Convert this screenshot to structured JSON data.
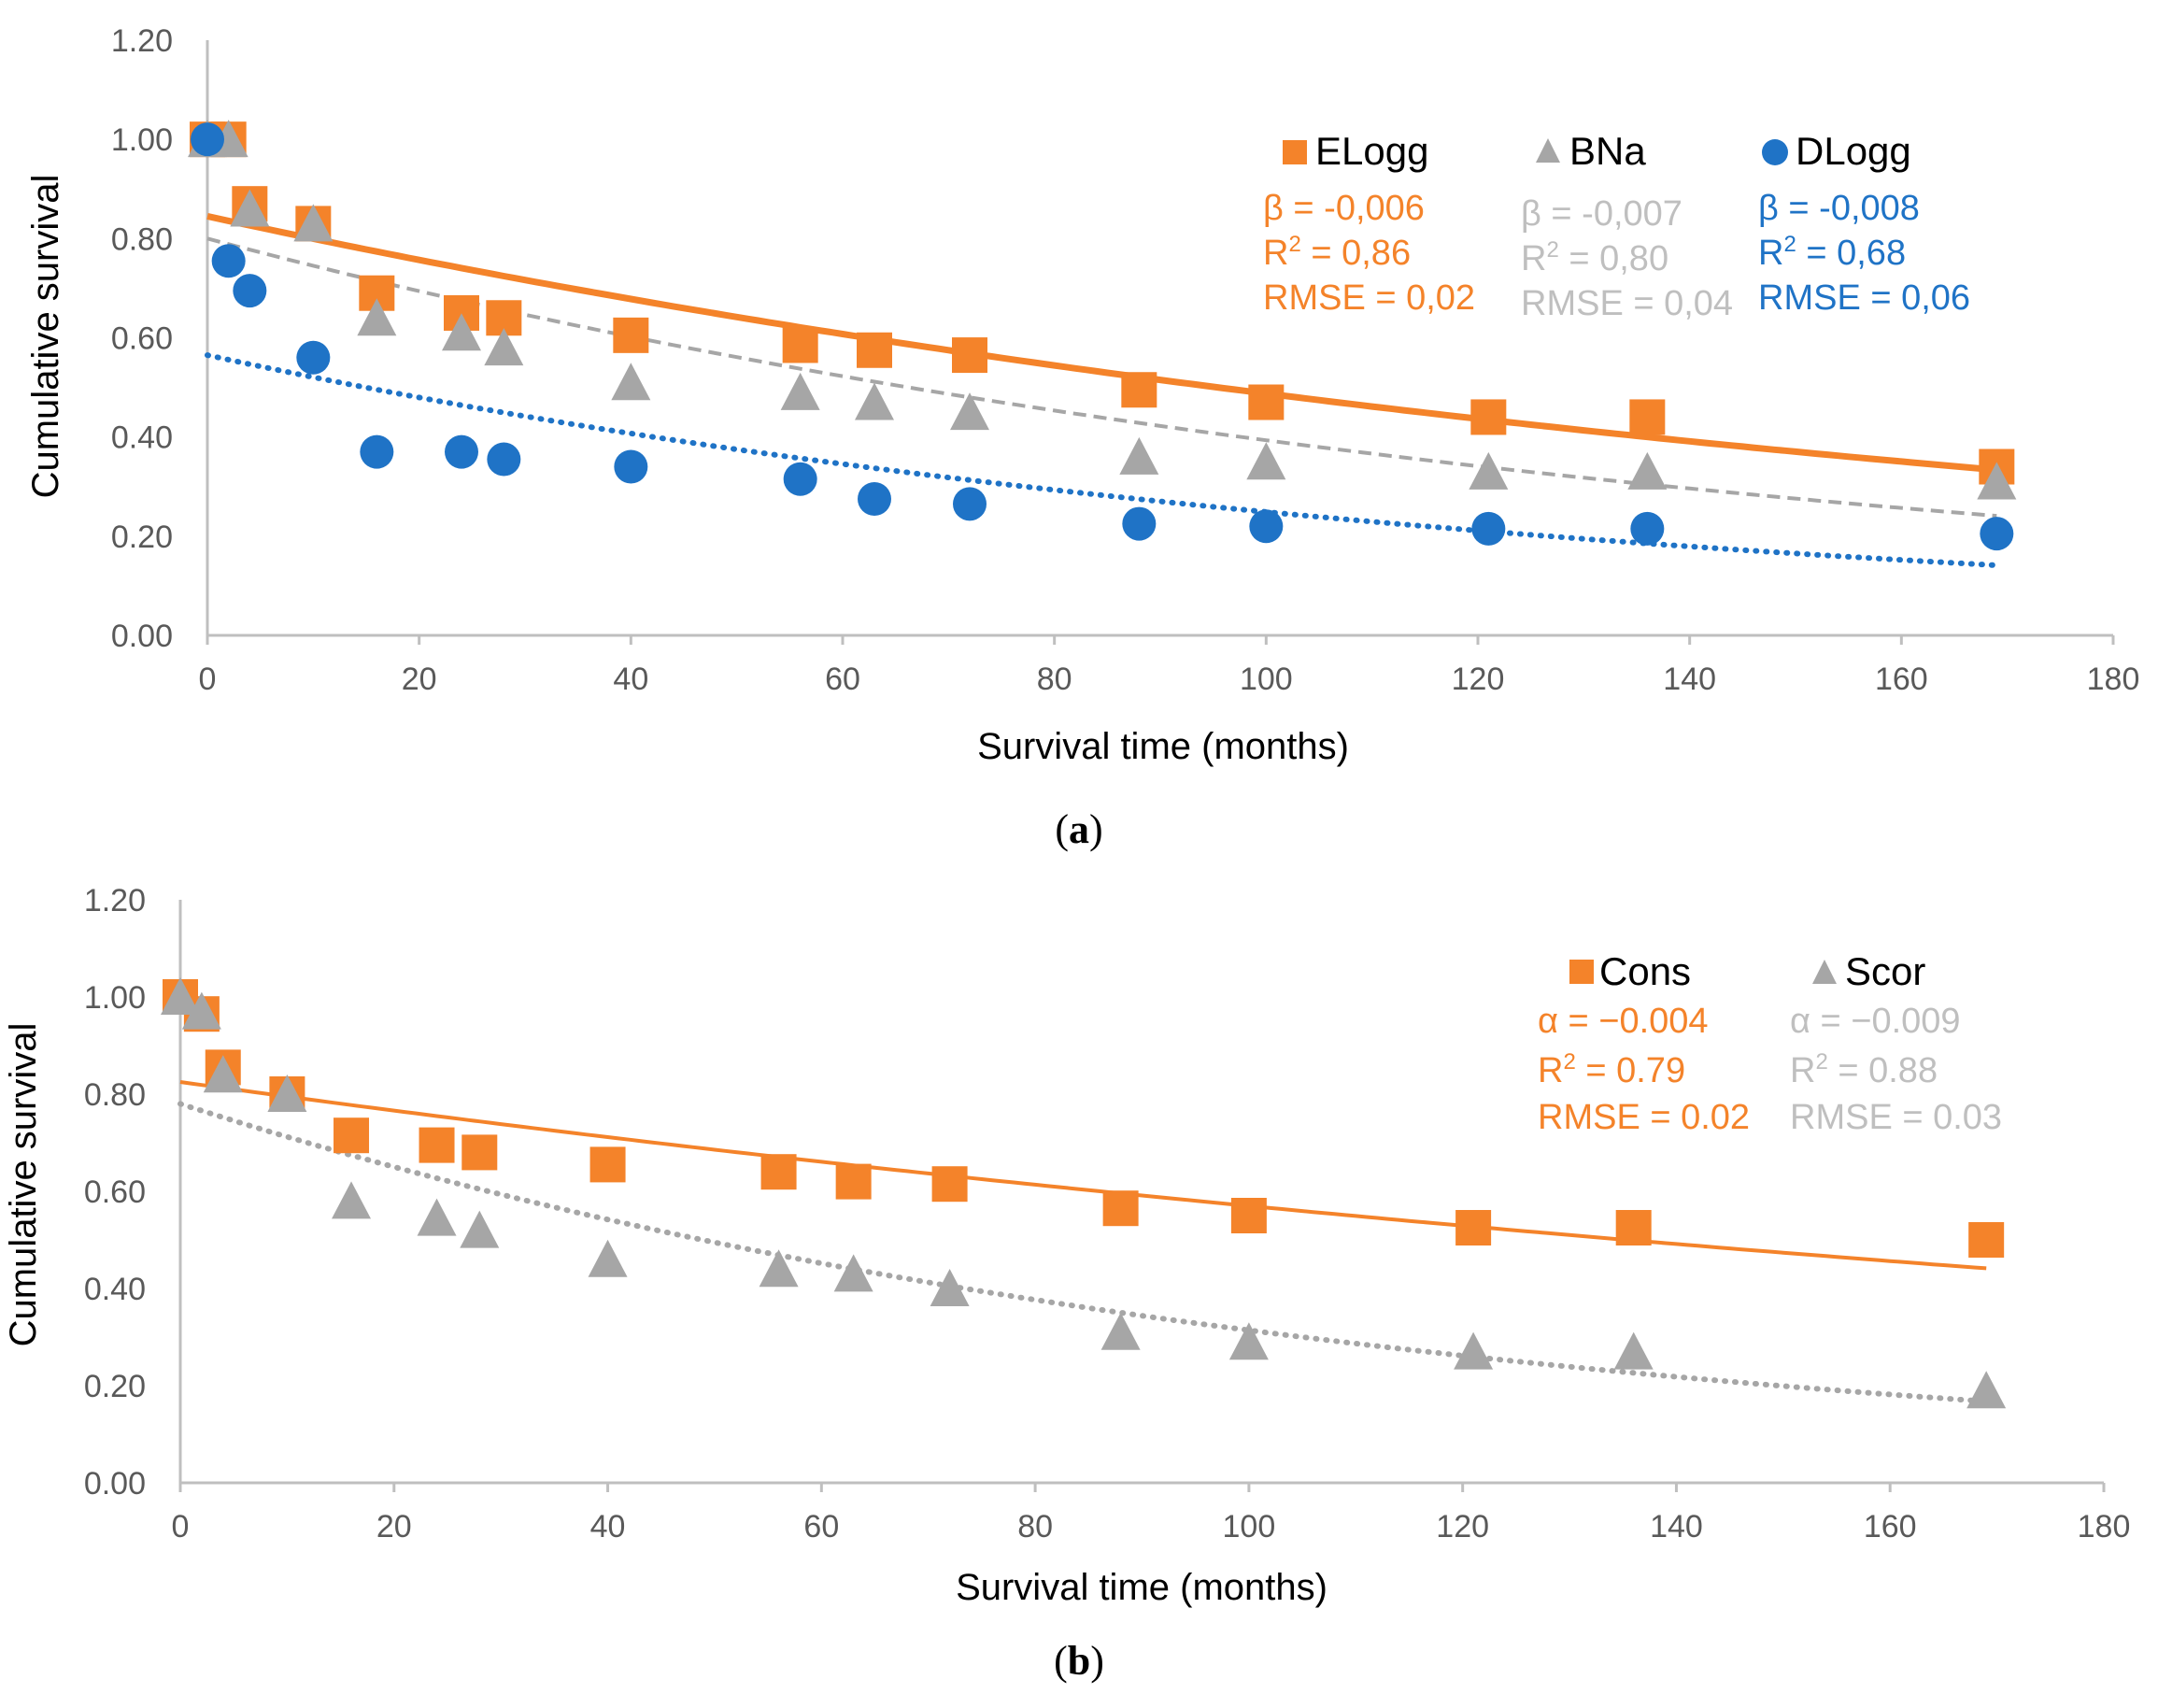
{
  "colors": {
    "orange": "#F4832A",
    "gray": "#A6A6A6",
    "blue": "#1F73C6",
    "axis": "#BFBFBF"
  },
  "chart_data": [
    {
      "panel": "a",
      "type": "scatter",
      "xlabel": "Survival time (months)",
      "ylabel": "Cumulative survival",
      "xlim": [
        0,
        180
      ],
      "ylim": [
        0,
        1.2
      ],
      "xticks": [
        "0",
        "20",
        "40",
        "60",
        "80",
        "100",
        "120",
        "140",
        "160",
        "180"
      ],
      "yticks": [
        "0.00",
        "0.20",
        "0.40",
        "0.60",
        "0.80",
        "1.00",
        "1.20"
      ],
      "caption": {
        "open": "(",
        "letter": "a",
        "close": ")"
      },
      "legend": "top-right",
      "series": [
        {
          "name": "ELogg",
          "marker": "square",
          "color": "#F4832A",
          "x": [
            0,
            2,
            4,
            10,
            16,
            24,
            28,
            40,
            56,
            63,
            72,
            88,
            100,
            121,
            136,
            169
          ],
          "y": [
            1.0,
            1.0,
            0.87,
            0.83,
            0.69,
            0.65,
            0.64,
            0.605,
            0.585,
            0.575,
            0.565,
            0.495,
            0.47,
            0.44,
            0.44,
            0.34
          ],
          "fit": {
            "a": 0.845,
            "b": -0.0055,
            "style": "solid"
          },
          "stats": {
            "coef": "β = -0,006",
            "r2_label": "R",
            "r2_sup": "2",
            "r2_value": " = 0,86",
            "rmse": "RMSE = 0,02"
          }
        },
        {
          "name": "BNa",
          "marker": "triangle",
          "color": "#A6A6A6",
          "x": [
            0,
            2,
            4,
            10,
            16,
            24,
            28,
            40,
            56,
            63,
            72,
            88,
            100,
            121,
            136,
            169
          ],
          "y": [
            1.0,
            1.0,
            0.86,
            0.83,
            0.64,
            0.61,
            0.58,
            0.51,
            0.49,
            0.47,
            0.45,
            0.36,
            0.35,
            0.33,
            0.33,
            0.31
          ],
          "fit": {
            "a": 0.8,
            "b": -0.0071,
            "style": "dashed"
          },
          "stats": {
            "coef": "β = -0,007",
            "r2_label": "R",
            "r2_sup": "2",
            "r2_value": " = 0,80",
            "rmse": "RMSE = 0,04"
          }
        },
        {
          "name": "DLogg",
          "marker": "circle",
          "color": "#1F73C6",
          "x": [
            0,
            2,
            4,
            10,
            16,
            24,
            28,
            40,
            56,
            63,
            72,
            88,
            100,
            121,
            136,
            169
          ],
          "y": [
            1.0,
            0.755,
            0.695,
            0.56,
            0.37,
            0.37,
            0.355,
            0.34,
            0.315,
            0.275,
            0.265,
            0.225,
            0.22,
            0.215,
            0.215,
            0.205
          ],
          "fit": {
            "a": 0.565,
            "b": -0.0082,
            "style": "dotted"
          },
          "stats": {
            "coef": "β = -0,008",
            "r2_label": "R",
            "r2_sup": "2",
            "r2_value": " = 0,68",
            "rmse": "RMSE = 0,06"
          }
        }
      ]
    },
    {
      "panel": "b",
      "type": "scatter",
      "xlabel": "Survival time (months)",
      "ylabel": "Cumulative survival",
      "xlim": [
        0,
        180
      ],
      "ylim": [
        0,
        1.2
      ],
      "xticks": [
        "0",
        "20",
        "40",
        "60",
        "80",
        "100",
        "120",
        "140",
        "160",
        "180"
      ],
      "yticks": [
        "0.00",
        "0.20",
        "0.40",
        "0.60",
        "0.80",
        "1.00",
        "1.20"
      ],
      "caption": {
        "open": "(",
        "letter": "b",
        "close": ")"
      },
      "legend": "top-right",
      "series": [
        {
          "name": "Cons",
          "marker": "square",
          "color": "#F4832A",
          "x": [
            0,
            2,
            4,
            10,
            16,
            24,
            28,
            40,
            56,
            63,
            72,
            88,
            100,
            121,
            136,
            169
          ],
          "y": [
            1.0,
            0.965,
            0.855,
            0.8,
            0.715,
            0.695,
            0.68,
            0.655,
            0.64,
            0.62,
            0.615,
            0.565,
            0.55,
            0.525,
            0.525,
            0.5
          ],
          "fit": {
            "a": 0.825,
            "b": -0.0037,
            "style": "solid"
          },
          "stats": {
            "coef": "α = −0.004",
            "r2_label": "R",
            "r2_sup": "2",
            "r2_value": " = 0.79",
            "rmse": "RMSE = 0.02"
          }
        },
        {
          "name": "Scor",
          "marker": "triangle",
          "color": "#A6A6A6",
          "x": [
            0,
            2,
            4,
            10,
            16,
            24,
            28,
            40,
            56,
            63,
            72,
            88,
            100,
            121,
            136,
            169
          ],
          "y": [
            1.0,
            0.97,
            0.84,
            0.8,
            0.58,
            0.545,
            0.52,
            0.46,
            0.44,
            0.43,
            0.4,
            0.31,
            0.29,
            0.27,
            0.27,
            0.19
          ],
          "fit": {
            "a": 0.78,
            "b": -0.0091,
            "style": "dotted"
          },
          "stats": {
            "coef": "α = −0.009",
            "r2_label": "R",
            "r2_sup": "2",
            "r2_value": " = 0.88",
            "rmse": "RMSE = 0.03"
          }
        }
      ]
    }
  ]
}
